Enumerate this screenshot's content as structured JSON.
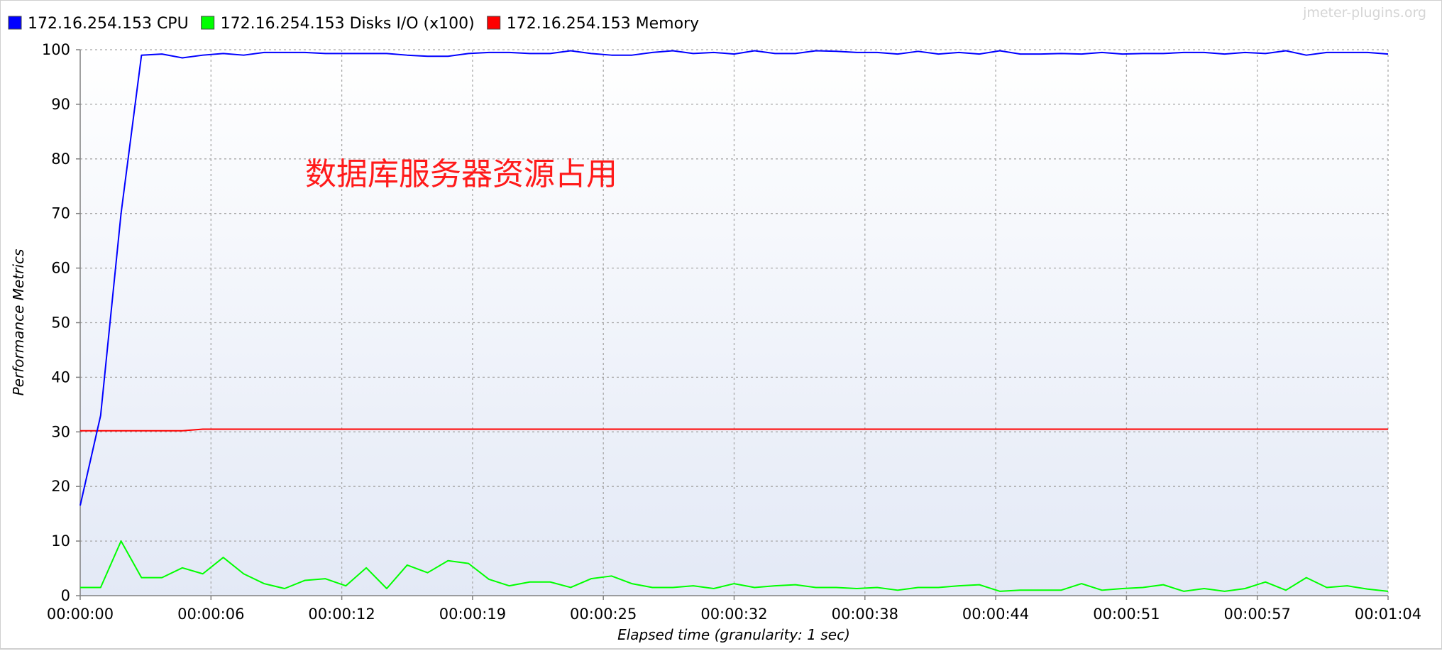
{
  "watermark": "jmeter-plugins.org",
  "annotation": "数据库服务器资源占用",
  "chart_data": {
    "type": "line",
    "title": "",
    "xlabel": "Elapsed time (granularity: 1 sec)",
    "ylabel": "Performance Metrics",
    "xlim": [
      0,
      64
    ],
    "ylim": [
      0,
      100
    ],
    "grid": true,
    "legend_position": "top",
    "x_tick_values": [
      0,
      6.4,
      12.8,
      19.2,
      25.6,
      32,
      38.4,
      44.8,
      51.2,
      57.6,
      64
    ],
    "x_tick_labels": [
      "00:00:00",
      "00:00:06",
      "00:00:12",
      "00:00:19",
      "00:00:25",
      "00:00:32",
      "00:00:38",
      "00:00:44",
      "00:00:51",
      "00:00:57",
      "00:01:04"
    ],
    "y_ticks": [
      0,
      10,
      20,
      30,
      40,
      50,
      60,
      70,
      80,
      90,
      100
    ],
    "x": [
      0,
      1,
      2,
      3,
      4,
      5,
      6,
      7,
      8,
      9,
      10,
      11,
      12,
      13,
      14,
      15,
      16,
      17,
      18,
      19,
      20,
      21,
      22,
      23,
      24,
      25,
      26,
      27,
      28,
      29,
      30,
      31,
      32,
      33,
      34,
      35,
      36,
      37,
      38,
      39,
      40,
      41,
      42,
      43,
      44,
      45,
      46,
      47,
      48,
      49,
      50,
      51,
      52,
      53,
      54,
      55,
      56,
      57,
      58,
      59,
      60,
      61,
      62,
      63,
      64
    ],
    "series": [
      {
        "name": "172.16.254.153 CPU",
        "color": "#0000ff",
        "values": [
          16.5,
          33,
          70,
          99,
          99.2,
          98.5,
          99,
          99.3,
          99,
          99.5,
          99.5,
          99.5,
          99.3,
          99.3,
          99.3,
          99.3,
          99,
          98.8,
          98.8,
          99.3,
          99.5,
          99.5,
          99.3,
          99.3,
          99.8,
          99.3,
          99,
          99,
          99.5,
          99.8,
          99.3,
          99.5,
          99.2,
          99.8,
          99.3,
          99.3,
          99.8,
          99.7,
          99.5,
          99.5,
          99.2,
          99.7,
          99.2,
          99.5,
          99.2,
          99.8,
          99.2,
          99.2,
          99.3,
          99.2,
          99.5,
          99.2,
          99.3,
          99.3,
          99.5,
          99.5,
          99.2,
          99.5,
          99.3,
          99.8,
          99,
          99.5,
          99.5,
          99.5,
          99.2
        ]
      },
      {
        "name": "172.16.254.153 Disks I/O (x100)",
        "color": "#00ff00",
        "values": [
          1.5,
          1.5,
          10,
          3.3,
          3.3,
          5.1,
          4,
          7,
          4,
          2.2,
          1.3,
          2.8,
          3.1,
          1.8,
          5.1,
          1.3,
          5.6,
          4.2,
          6.4,
          5.9,
          3,
          1.8,
          2.5,
          2.5,
          1.5,
          3.1,
          3.6,
          2.2,
          1.5,
          1.5,
          1.8,
          1.3,
          2.2,
          1.5,
          1.8,
          2,
          1.5,
          1.5,
          1.3,
          1.5,
          1,
          1.5,
          1.5,
          1.8,
          2,
          0.8,
          1,
          1,
          1,
          2.2,
          1,
          1.3,
          1.5,
          2,
          0.8,
          1.3,
          0.8,
          1.3,
          2.5,
          1,
          3.3,
          1.5,
          1.8,
          1.2,
          0.8
        ]
      },
      {
        "name": "172.16.254.153 Memory",
        "color": "#ff0000",
        "values": [
          30.2,
          30.2,
          30.2,
          30.2,
          30.2,
          30.2,
          30.5,
          30.5,
          30.5,
          30.5,
          30.5,
          30.5,
          30.5,
          30.5,
          30.5,
          30.5,
          30.5,
          30.5,
          30.5,
          30.5,
          30.5,
          30.5,
          30.5,
          30.5,
          30.5,
          30.5,
          30.5,
          30.5,
          30.5,
          30.5,
          30.5,
          30.5,
          30.5,
          30.5,
          30.5,
          30.5,
          30.5,
          30.5,
          30.5,
          30.5,
          30.5,
          30.5,
          30.5,
          30.5,
          30.5,
          30.5,
          30.5,
          30.5,
          30.5,
          30.5,
          30.5,
          30.5,
          30.5,
          30.5,
          30.5,
          30.5,
          30.5,
          30.5,
          30.5,
          30.5,
          30.5,
          30.5,
          30.5,
          30.5,
          30.5
        ]
      }
    ]
  }
}
